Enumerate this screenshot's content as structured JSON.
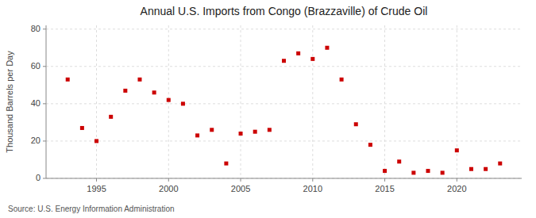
{
  "chart_data": {
    "type": "scatter",
    "title": "Annual U.S. Imports from Congo (Brazzaville) of Crude Oil",
    "ylabel": "Thousand Barrels per Day",
    "annotations": [
      "Source: U.S. Energy Information Administration"
    ],
    "color": "#cc0000",
    "marker": "square",
    "grid": true,
    "xlim": [
      1991.5,
      2024.5
    ],
    "ylim": [
      0,
      82
    ],
    "xticks": [
      1995,
      2000,
      2005,
      2010,
      2015,
      2020
    ],
    "yticks": [
      0,
      20,
      40,
      60,
      80
    ],
    "x": [
      1993,
      1994,
      1995,
      1996,
      1997,
      1998,
      1999,
      2000,
      2001,
      2002,
      2003,
      2004,
      2005,
      2006,
      2007,
      2008,
      2009,
      2010,
      2011,
      2012,
      2013,
      2014,
      2015,
      2016,
      2017,
      2018,
      2019,
      2020,
      2021,
      2022,
      2023
    ],
    "values": [
      53,
      27,
      20,
      33,
      47,
      53,
      46,
      42,
      40,
      23,
      26,
      8,
      24,
      25,
      26,
      63,
      67,
      64,
      70,
      53,
      29,
      18,
      4,
      9,
      3,
      4,
      3,
      15,
      5,
      5,
      8
    ]
  }
}
